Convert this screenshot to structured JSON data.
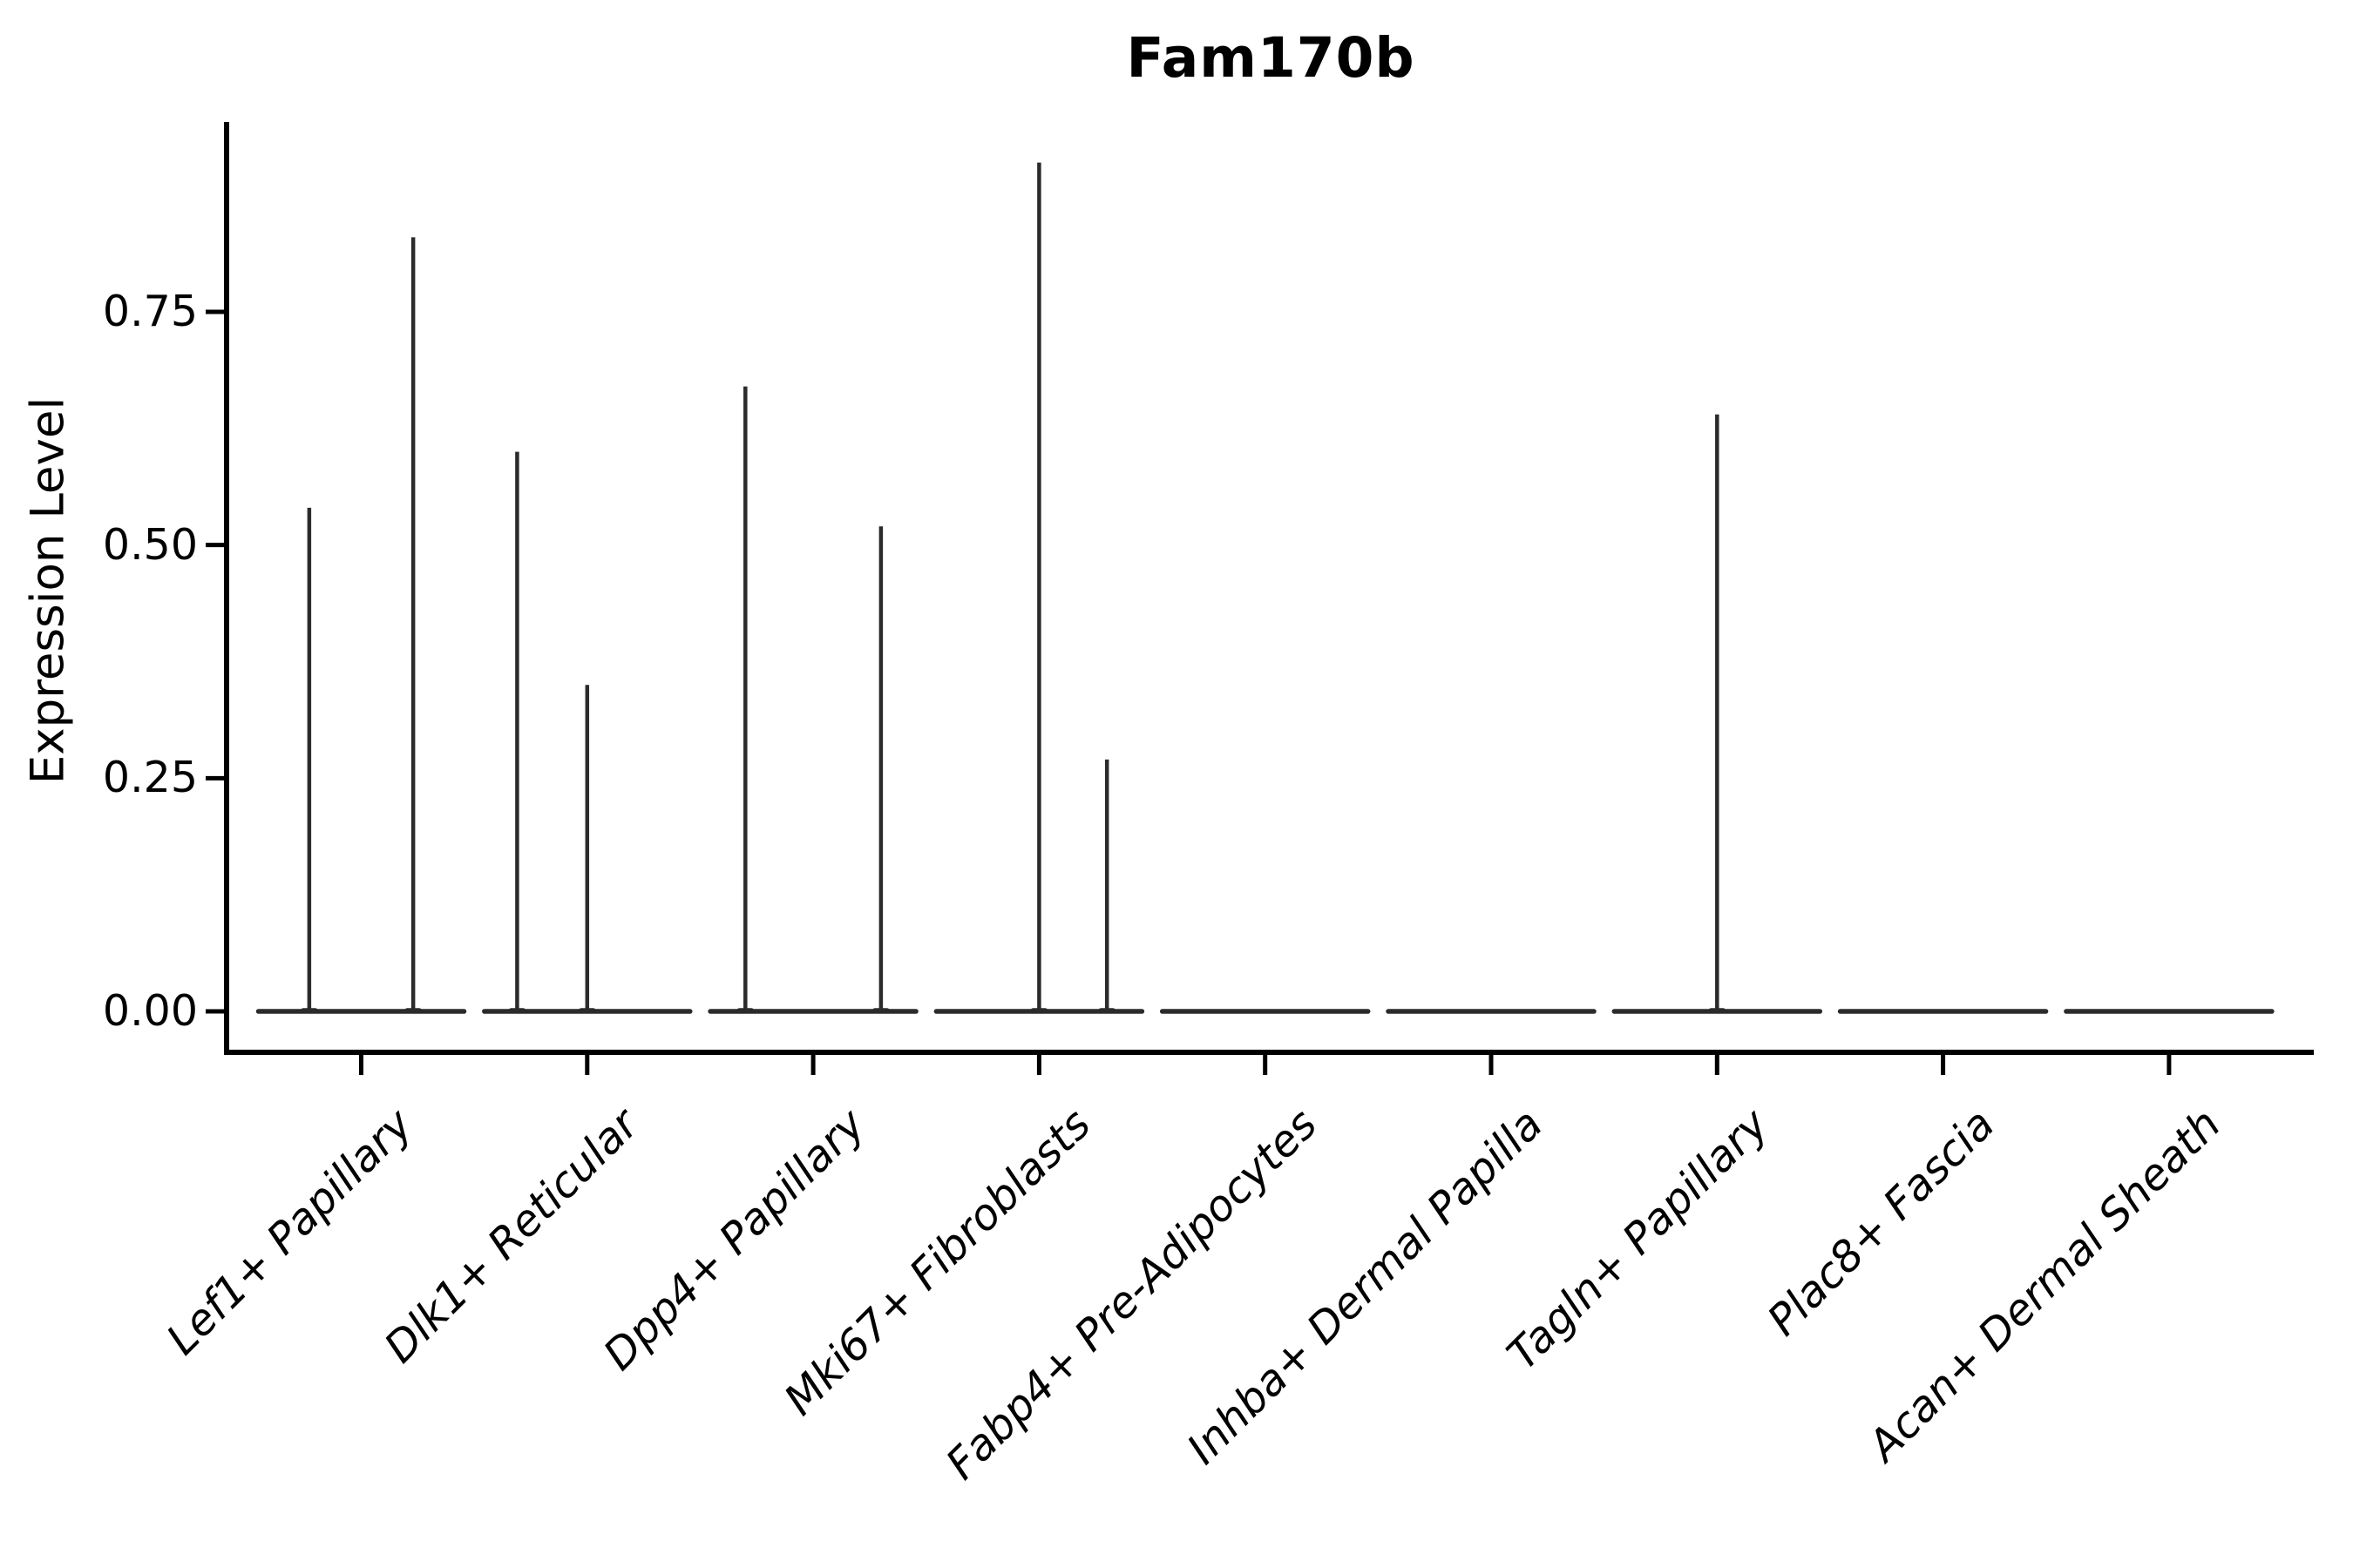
{
  "title": "Fam170b",
  "axes": {
    "y_label": "Expression Level",
    "y_tick_labels": [
      "0.00",
      "0.25",
      "0.50",
      "0.75"
    ],
    "x_category_labels": [
      "Lef1+ Papillary",
      "Dlk1+ Reticular",
      "Dpp4+ Papillary",
      "Mki67+ Fibroblasts",
      "Fabp4+ Pre-Adipocytes",
      "Inhba+ Dermal Papilla",
      "Tagln+ Papillary",
      "Plac8+ Fascia",
      "Acan+ Dermal Sheath"
    ]
  },
  "chart_data": {
    "type": "violin",
    "title": "Fam170b",
    "xlabel": "",
    "ylabel": "Expression Level",
    "ylim": [
      -0.04,
      0.95
    ],
    "yticks": [
      0,
      0.25,
      0.5,
      0.75
    ],
    "grid": false,
    "legend": null,
    "categories": [
      "Lef1+ Papillary",
      "Dlk1+ Reticular",
      "Dpp4+ Papillary",
      "Mki67+ Fibroblasts",
      "Fabp4+ Pre-Adipocytes",
      "Inhba+ Dermal Papilla",
      "Tagln+ Papillary",
      "Plac8+ Fascia",
      "Acan+ Dermal Sheath"
    ],
    "description": "Violin plot of Fam170b expression; every violin is collapsed flat at 0 with narrow spikes reaching the maximum expressed value(s).",
    "baseline_value": 0,
    "violin_width_frac": 0.91,
    "violins": [
      {
        "category": "Lef1+ Papillary",
        "spikes": [
          {
            "offset_frac": -0.23,
            "max_expression": 0.54
          },
          {
            "offset_frac": 0.23,
            "max_expression": 0.83
          }
        ]
      },
      {
        "category": "Dlk1+ Reticular",
        "spikes": [
          {
            "offset_frac": -0.31,
            "max_expression": 0.6
          },
          {
            "offset_frac": 0.0,
            "max_expression": 0.35
          }
        ]
      },
      {
        "category": "Dpp4+ Papillary",
        "spikes": [
          {
            "offset_frac": -0.3,
            "max_expression": 0.67
          },
          {
            "offset_frac": 0.3,
            "max_expression": 0.52
          }
        ]
      },
      {
        "category": "Mki67+ Fibroblasts",
        "spikes": [
          {
            "offset_frac": 0.0,
            "max_expression": 0.91
          },
          {
            "offset_frac": 0.3,
            "max_expression": 0.27
          }
        ]
      },
      {
        "category": "Fabp4+ Pre-Adipocytes",
        "spikes": []
      },
      {
        "category": "Inhba+ Dermal Papilla",
        "spikes": []
      },
      {
        "category": "Tagln+ Papillary",
        "spikes": [
          {
            "offset_frac": 0.0,
            "max_expression": 0.64
          }
        ]
      },
      {
        "category": "Plac8+ Fascia",
        "spikes": []
      },
      {
        "category": "Acan+ Dermal Sheath",
        "spikes": []
      }
    ]
  },
  "colors": {
    "violin_line": "#2b2b2b",
    "axis": "#000000",
    "text": "#000000",
    "background": "#ffffff"
  }
}
